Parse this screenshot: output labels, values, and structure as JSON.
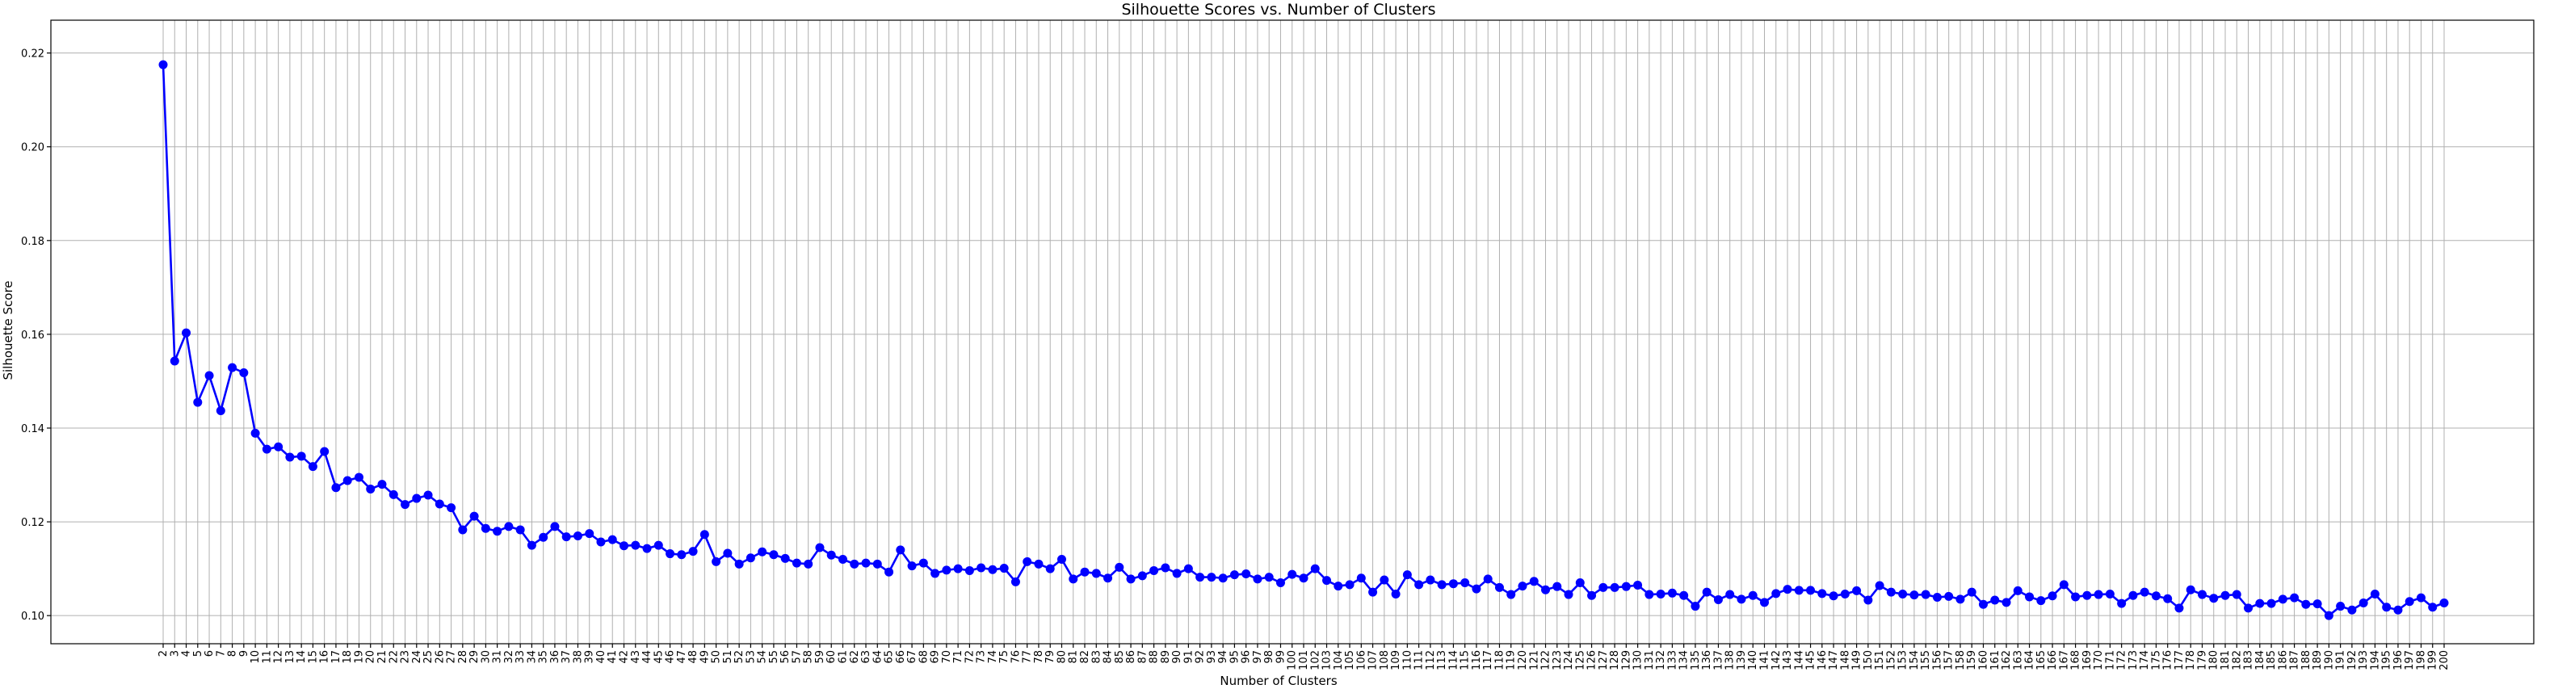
{
  "chart_data": {
    "type": "line",
    "title": "Silhouette Scores vs. Number of Clusters",
    "xlabel": "Number of Clusters",
    "ylabel": "Silhouette Score",
    "x_start": 2,
    "x_end": 200,
    "xlim": [
      2,
      200
    ],
    "ylim": [
      0.094,
      0.227
    ],
    "yticks": [
      0.1,
      0.12,
      0.14,
      0.16,
      0.18,
      0.2,
      0.22
    ],
    "grid": true,
    "marker": "circle",
    "line_color": "#0000ff",
    "series": [
      {
        "values": [
          0.2175,
          0.1543,
          0.1603,
          0.1455,
          0.1512,
          0.1437,
          0.1529,
          0.1518,
          0.1389,
          0.1355,
          0.136,
          0.1338,
          0.134,
          0.1318,
          0.135,
          0.1273,
          0.1288,
          0.1295,
          0.127,
          0.128,
          0.1258,
          0.1237,
          0.125,
          0.1257,
          0.1238,
          0.123,
          0.1183,
          0.1212,
          0.1186,
          0.118,
          0.119,
          0.1183,
          0.115,
          0.1167,
          0.119,
          0.1168,
          0.117,
          0.1175,
          0.1157,
          0.1162,
          0.1149,
          0.115,
          0.1143,
          0.115,
          0.1132,
          0.113,
          0.1137,
          0.1173,
          0.1115,
          0.1133,
          0.111,
          0.1123,
          0.1136,
          0.113,
          0.1122,
          0.1112,
          0.111,
          0.1145,
          0.1129,
          0.112,
          0.111,
          0.1112,
          0.111,
          0.1093,
          0.114,
          0.1106,
          0.1112,
          0.109,
          0.1097,
          0.11,
          0.1096,
          0.1102,
          0.1098,
          0.1101,
          0.1072,
          0.1115,
          0.111,
          0.11,
          0.112,
          0.1078,
          0.1093,
          0.109,
          0.108,
          0.1103,
          0.1078,
          0.1085,
          0.1096,
          0.1102,
          0.109,
          0.11,
          0.1082,
          0.1082,
          0.108,
          0.1087,
          0.1089,
          0.1078,
          0.1082,
          0.107,
          0.1088,
          0.108,
          0.11,
          0.1075,
          0.1063,
          0.1066,
          0.108,
          0.105,
          0.1076,
          0.1046,
          0.1087,
          0.1066,
          0.1076,
          0.1066,
          0.1068,
          0.107,
          0.1057,
          0.1078,
          0.106,
          0.1045,
          0.1063,
          0.1073,
          0.1055,
          0.1062,
          0.1045,
          0.107,
          0.1043,
          0.106,
          0.106,
          0.1062,
          0.1065,
          0.1045,
          0.1046,
          0.1048,
          0.1043,
          0.102,
          0.105,
          0.1034,
          0.1045,
          0.1035,
          0.1043,
          0.1028,
          0.1047,
          0.1056,
          0.1054,
          0.1054,
          0.1047,
          0.1042,
          0.1046,
          0.1053,
          0.1033,
          0.1064,
          0.105,
          0.1046,
          0.1044,
          0.1045,
          0.1039,
          0.1041,
          0.1035,
          0.105,
          0.1024,
          0.1033,
          0.1028,
          0.1053,
          0.104,
          0.1032,
          0.1042,
          0.1066,
          0.104,
          0.1043,
          0.1045,
          0.1046,
          0.1026,
          0.1043,
          0.105,
          0.1042,
          0.1036,
          0.1016,
          0.1055,
          0.1045,
          0.1037,
          0.1043,
          0.1045,
          0.1016,
          0.1026,
          0.1026,
          0.1035,
          0.1038,
          0.1024,
          0.1025,
          0.1,
          0.102,
          0.1012,
          0.1027,
          0.1046,
          0.1018,
          0.1012,
          0.103,
          0.1038,
          0.1018,
          0.1027
        ]
      }
    ]
  }
}
